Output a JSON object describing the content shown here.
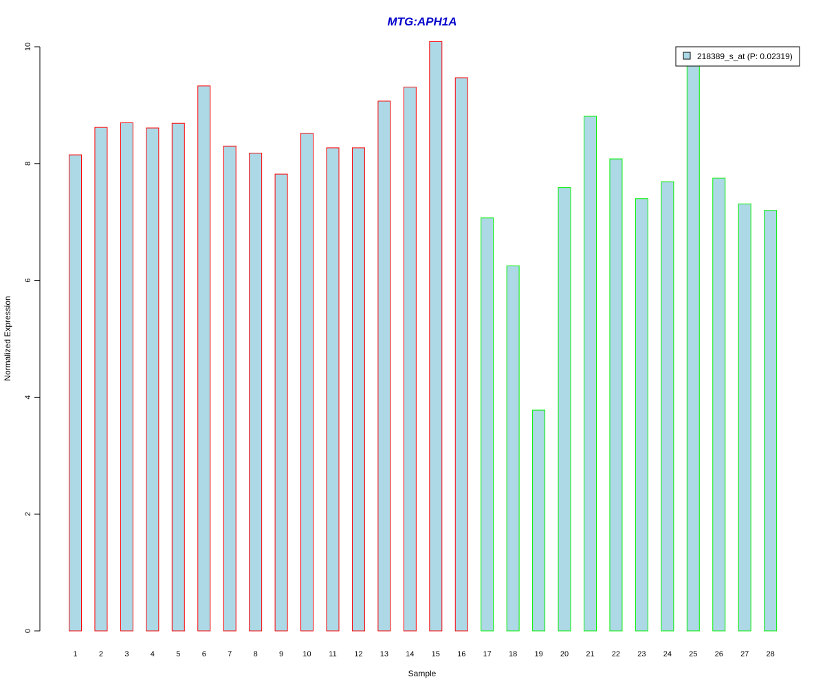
{
  "chart_data": {
    "type": "bar",
    "title": "MTG:APH1A",
    "xlabel": "Sample",
    "ylabel": "Normalized Expression",
    "ylim": [
      0,
      10
    ],
    "yticks": [
      "0",
      "2",
      "4",
      "6",
      "8",
      "10"
    ],
    "categories": [
      "1",
      "2",
      "3",
      "4",
      "5",
      "6",
      "7",
      "8",
      "9",
      "10",
      "11",
      "12",
      "13",
      "14",
      "15",
      "16",
      "17",
      "18",
      "19",
      "20",
      "21",
      "22",
      "23",
      "24",
      "25",
      "26",
      "27",
      "28"
    ],
    "series": [
      {
        "name": "218389_s_at (P: 0.02319)",
        "fill_color": "#add8e6",
        "values": [
          8.15,
          8.62,
          8.7,
          8.61,
          8.69,
          9.33,
          8.3,
          8.18,
          7.82,
          8.52,
          8.27,
          8.27,
          9.07,
          9.31,
          10.09,
          9.47,
          7.07,
          6.25,
          3.78,
          7.59,
          8.81,
          8.08,
          7.4,
          7.69,
          9.73,
          7.75,
          7.31,
          7.2
        ]
      }
    ],
    "group_border_colors": [
      "#ff0000",
      "#ff0000",
      "#ff0000",
      "#ff0000",
      "#ff0000",
      "#ff0000",
      "#ff0000",
      "#ff0000",
      "#ff0000",
      "#ff0000",
      "#ff0000",
      "#ff0000",
      "#ff0000",
      "#ff0000",
      "#ff0000",
      "#ff0000",
      "#00ee00",
      "#00ee00",
      "#00ee00",
      "#00ee00",
      "#00ee00",
      "#00ee00",
      "#00ee00",
      "#00ee00",
      "#00ee00",
      "#00ee00",
      "#00ee00",
      "#00ee00"
    ],
    "title_color": "#0000cc",
    "legend_position": "top-right",
    "grid": false
  }
}
